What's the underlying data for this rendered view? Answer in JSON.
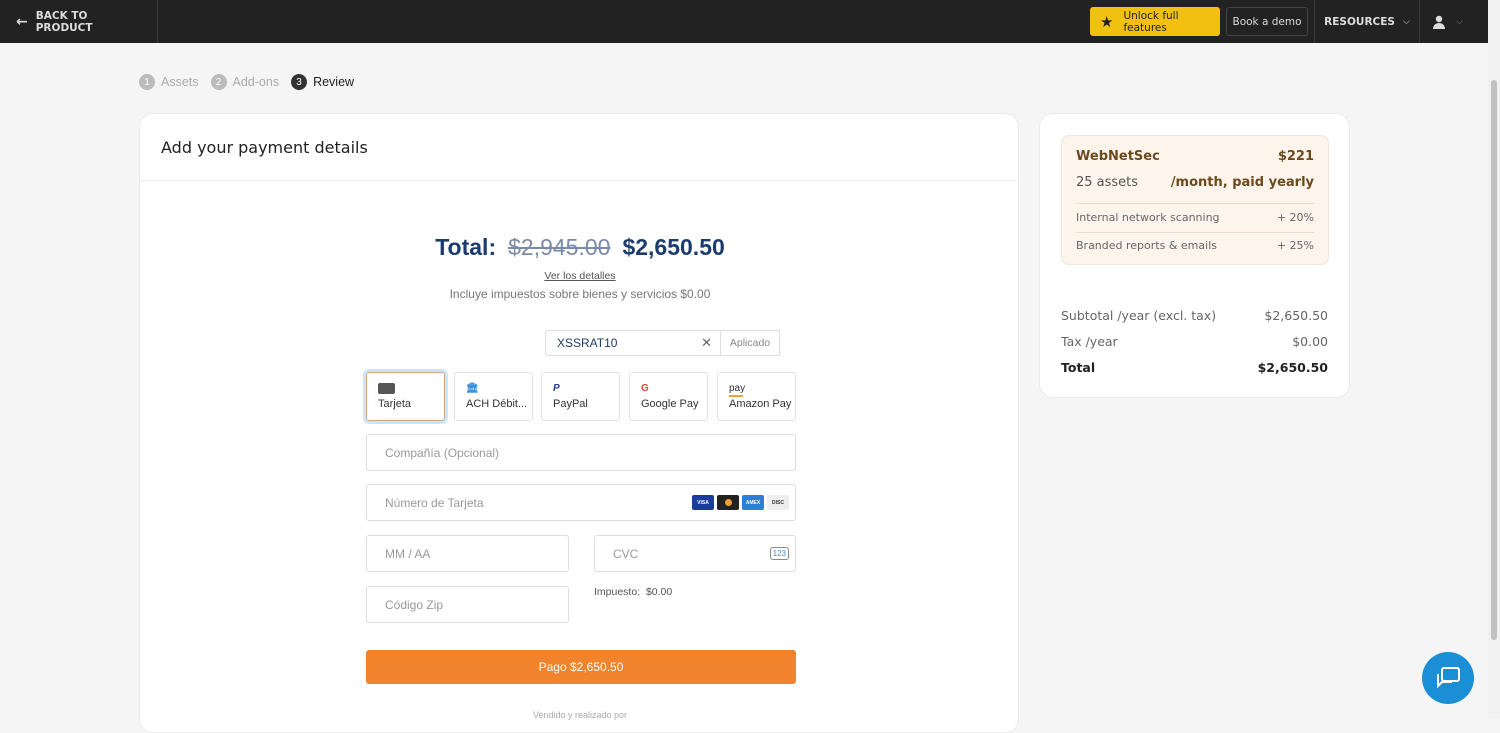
{
  "topbar": {
    "back": "BACK TO PRODUCT",
    "unlock": "Unlock full features",
    "demo": "Book a demo",
    "resources": "RESOURCES"
  },
  "steps": [
    {
      "n": "1",
      "label": "Assets"
    },
    {
      "n": "2",
      "label": "Add-ons"
    },
    {
      "n": "3",
      "label": "Review"
    }
  ],
  "payment": {
    "title": "Add your payment details",
    "total_label": "Total:",
    "old_price": "$2,945.00",
    "new_price": "$2,650.50",
    "details_link": "Ver los detalles",
    "tax_note": "Incluye impuestos sobre bienes y servicios $0.00",
    "coupon": "XSSRAT10",
    "applied": "Aplicado",
    "methods": [
      "Tarjeta",
      "ACH Débit...",
      "PayPal",
      "Google Pay",
      "Amazon Pay"
    ],
    "fields": {
      "company": "Compañía (Opcional)",
      "card": "Número de Tarjeta",
      "expiry": "MM / AA",
      "cvc": "CVC",
      "zip": "Código Zip"
    },
    "brands": [
      "VISA",
      "MC",
      "AMEX",
      "DISCOVER"
    ],
    "tax_label": "Impuesto:",
    "tax_value": "$0.00",
    "pay_button": "Pago $2,650.50",
    "sold_by": "Vendido y realizado por"
  },
  "summary": {
    "plan": "WebNetSec",
    "price": "$221",
    "assets": "25 assets",
    "period": "/month, paid yearly",
    "addons": [
      {
        "name": "Internal network scanning",
        "value": "+ 20%"
      },
      {
        "name": "Branded reports & emails",
        "value": "+ 25%"
      }
    ],
    "subtotal_label": "Subtotal /year (excl. tax)",
    "subtotal": "$2,650.50",
    "tax_label": "Tax /year",
    "tax": "$0.00",
    "total_label": "Total",
    "total": "$2,650.50"
  },
  "colors": {
    "accent": "#f0832b",
    "unlock": "#f2c010",
    "navy": "#1c3b6e"
  }
}
